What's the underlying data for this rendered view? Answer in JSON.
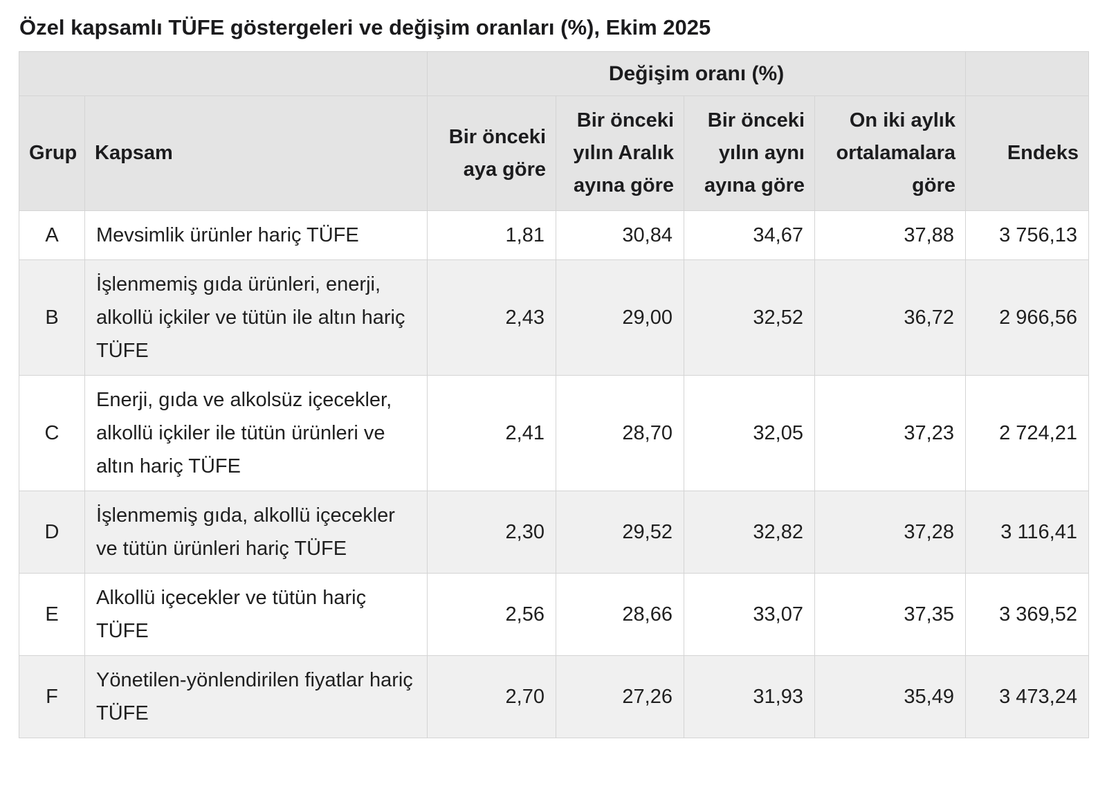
{
  "title": "Özel kapsamlı TÜFE göstergeleri ve değişim oranları (%), Ekim 2025",
  "colors": {
    "header_bg": "#e4e4e4",
    "stripe_bg": "#f0f0f0",
    "border": "#d4d4d4",
    "text": "#1f1f1f",
    "background": "#ffffff"
  },
  "table": {
    "group_header": "Değişim oranı (%)",
    "headers": {
      "grup": "Grup",
      "kapsam": "Kapsam",
      "change_cols": [
        "Bir önceki aya göre",
        "Bir önceki yılın Aralık ayına göre",
        "Bir önceki yılın aynı ayına göre",
        "On iki aylık ortalamalara göre"
      ],
      "endeks": "Endeks"
    },
    "rows": [
      {
        "grup": "A",
        "kapsam": "Mevsimlik ürünler hariç TÜFE",
        "values": [
          "1,81",
          "30,84",
          "34,67",
          "37,88"
        ],
        "endeks": "3 756,13"
      },
      {
        "grup": "B",
        "kapsam": "İşlenmemiş gıda ürünleri, enerji, alkollü içkiler ve tütün ile altın hariç TÜFE",
        "values": [
          "2,43",
          "29,00",
          "32,52",
          "36,72"
        ],
        "endeks": "2 966,56"
      },
      {
        "grup": "C",
        "kapsam": "Enerji, gıda ve alkolsüz içecekler, alkollü içkiler ile tütün ürünleri ve altın hariç TÜFE",
        "values": [
          "2,41",
          "28,70",
          "32,05",
          "37,23"
        ],
        "endeks": "2 724,21"
      },
      {
        "grup": "D",
        "kapsam": "İşlenmemiş gıda, alkollü içecekler ve tütün ürünleri hariç TÜFE",
        "values": [
          "2,30",
          "29,52",
          "32,82",
          "37,28"
        ],
        "endeks": "3 116,41"
      },
      {
        "grup": "E",
        "kapsam": "Alkollü içecekler ve tütün hariç TÜFE",
        "values": [
          "2,56",
          "28,66",
          "33,07",
          "37,35"
        ],
        "endeks": "3 369,52"
      },
      {
        "grup": "F",
        "kapsam": "Yönetilen-yönlendirilen fiyatlar hariç TÜFE",
        "values": [
          "2,70",
          "27,26",
          "31,93",
          "35,49"
        ],
        "endeks": "3 473,24"
      }
    ]
  },
  "chart_data": {
    "type": "table",
    "title": "Özel kapsamlı TÜFE göstergeleri ve değişim oranları (%), Ekim 2025",
    "column_group": {
      "label": "Değişim oranı (%)",
      "spans": [
        "Bir önceki aya göre",
        "Bir önceki yılın Aralık ayına göre",
        "Bir önceki yılın aynı ayına göre",
        "On iki aylık ortalamalara göre"
      ]
    },
    "columns": [
      "Grup",
      "Kapsam",
      "Bir önceki aya göre",
      "Bir önceki yılın Aralık ayına göre",
      "Bir önceki yılın aynı ayına göre",
      "On iki aylık ortalamalara göre",
      "Endeks"
    ],
    "rows": [
      [
        "A",
        "Mevsimlik ürünler hariç TÜFE",
        1.81,
        30.84,
        34.67,
        37.88,
        3756.13
      ],
      [
        "B",
        "İşlenmemiş gıda ürünleri, enerji, alkollü içkiler ve tütün ile altın hariç TÜFE",
        2.43,
        29.0,
        32.52,
        36.72,
        2966.56
      ],
      [
        "C",
        "Enerji, gıda ve alkolsüz içecekler, alkollü içkiler ile tütün ürünleri ve altın hariç TÜFE",
        2.41,
        28.7,
        32.05,
        37.23,
        2724.21
      ],
      [
        "D",
        "İşlenmemiş gıda, alkollü içecekler ve tütün ürünleri hariç TÜFE",
        2.3,
        29.52,
        32.82,
        37.28,
        3116.41
      ],
      [
        "E",
        "Alkollü içecekler ve tütün hariç TÜFE",
        2.56,
        28.66,
        33.07,
        37.35,
        3369.52
      ],
      [
        "F",
        "Yönetilen-yönlendirilen fiyatlar hariç TÜFE",
        2.7,
        27.26,
        31.93,
        35.49,
        3473.24
      ]
    ]
  }
}
